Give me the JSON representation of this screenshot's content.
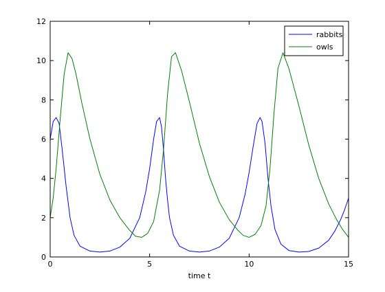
{
  "chart_data": {
    "type": "line",
    "xlabel": "time t",
    "ylabel": "",
    "title": "",
    "xlim": [
      0,
      15
    ],
    "ylim": [
      0,
      12
    ],
    "xticks": [
      0,
      5,
      10,
      15
    ],
    "yticks": [
      0,
      2,
      4,
      6,
      8,
      10,
      12
    ],
    "xtick_labels": [
      "0",
      "5",
      "10",
      "15"
    ],
    "ytick_labels": [
      "0",
      "2",
      "4",
      "6",
      "8",
      "10",
      "12"
    ],
    "grid": false,
    "legend_position": "top-right",
    "series": [
      {
        "name": "rabbits",
        "color": "#0000ff",
        "x": [
          0,
          0.15,
          0.3,
          0.45,
          0.6,
          0.8,
          1.0,
          1.2,
          1.5,
          2.0,
          2.5,
          3.0,
          3.5,
          4.0,
          4.5,
          4.8,
          5.0,
          5.2,
          5.35,
          5.5,
          5.6,
          5.7,
          5.8,
          5.9,
          6.0,
          6.2,
          6.5,
          7.0,
          7.5,
          8.0,
          8.5,
          9.0,
          9.5,
          9.8,
          10.0,
          10.2,
          10.4,
          10.55,
          10.65,
          10.8,
          10.95,
          11.1,
          11.3,
          11.6,
          12.0,
          12.5,
          13.0,
          13.5,
          14.0,
          14.3,
          14.6,
          14.8,
          15.0
        ],
        "y": [
          6.0,
          6.9,
          7.1,
          6.8,
          5.5,
          3.6,
          2.0,
          1.1,
          0.55,
          0.3,
          0.25,
          0.3,
          0.5,
          0.95,
          2.0,
          3.3,
          4.5,
          6.0,
          6.9,
          7.1,
          6.6,
          5.4,
          4.0,
          2.9,
          2.0,
          1.1,
          0.55,
          0.3,
          0.25,
          0.3,
          0.5,
          0.95,
          2.0,
          3.2,
          4.3,
          5.6,
          6.8,
          7.1,
          6.9,
          5.8,
          4.0,
          2.6,
          1.4,
          0.65,
          0.33,
          0.25,
          0.28,
          0.45,
          0.85,
          1.3,
          1.9,
          2.4,
          3.0
        ]
      },
      {
        "name": "owls",
        "color": "#008000",
        "x": [
          0,
          0.15,
          0.3,
          0.5,
          0.7,
          0.9,
          1.1,
          1.3,
          1.6,
          2.0,
          2.5,
          3.0,
          3.5,
          4.0,
          4.3,
          4.6,
          4.9,
          5.2,
          5.5,
          5.7,
          5.9,
          6.1,
          6.3,
          6.6,
          7.0,
          7.5,
          8.0,
          8.5,
          9.0,
          9.4,
          9.7,
          10.0,
          10.3,
          10.6,
          10.85,
          11.05,
          11.25,
          11.45,
          11.7,
          12.0,
          12.5,
          13.0,
          13.5,
          14.0,
          14.4,
          14.7,
          15.0
        ],
        "y": [
          2.0,
          3.0,
          4.5,
          7.0,
          9.3,
          10.4,
          10.1,
          9.3,
          7.8,
          6.0,
          4.2,
          2.9,
          2.0,
          1.35,
          1.05,
          1.0,
          1.2,
          1.8,
          3.4,
          5.5,
          8.3,
          10.2,
          10.4,
          9.5,
          7.9,
          5.8,
          4.1,
          2.8,
          1.9,
          1.4,
          1.1,
          1.0,
          1.15,
          1.6,
          2.6,
          4.5,
          7.3,
          9.6,
          10.4,
          9.6,
          7.7,
          5.7,
          4.0,
          2.7,
          1.9,
          1.4,
          1.0
        ]
      }
    ]
  }
}
